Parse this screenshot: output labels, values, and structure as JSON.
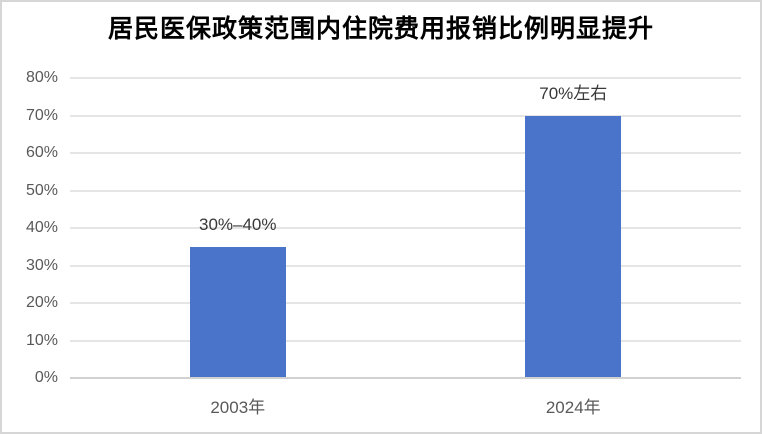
{
  "title": "居民医保政策范围内住院费用报销比例明显提升",
  "colors": {
    "bar": "#4a74c9",
    "gridline": "#e6e5e5",
    "axis_line": "#d2d1d1",
    "tick_label": "#595959",
    "data_label": "#383838",
    "title": "#000000",
    "frame_border": "#d6d6d6",
    "background": "#ffffff"
  },
  "chart_data": {
    "type": "bar",
    "title": "居民医保政策范围内住院费用报销比例明显提升",
    "categories": [
      "2003年",
      "2024年"
    ],
    "values": [
      35,
      70
    ],
    "data_labels": [
      "30%–40%",
      "70%左右"
    ],
    "xlabel": "",
    "ylabel": "",
    "ylim": [
      0,
      80
    ],
    "grid": true,
    "legend": false,
    "yticks": [
      {
        "value": 0,
        "label": "0%"
      },
      {
        "value": 10,
        "label": "10%"
      },
      {
        "value": 20,
        "label": "20%"
      },
      {
        "value": 30,
        "label": "30%"
      },
      {
        "value": 40,
        "label": "40%"
      },
      {
        "value": 50,
        "label": "50%"
      },
      {
        "value": 60,
        "label": "60%"
      },
      {
        "value": 70,
        "label": "70%"
      },
      {
        "value": 80,
        "label": "80%"
      }
    ]
  }
}
